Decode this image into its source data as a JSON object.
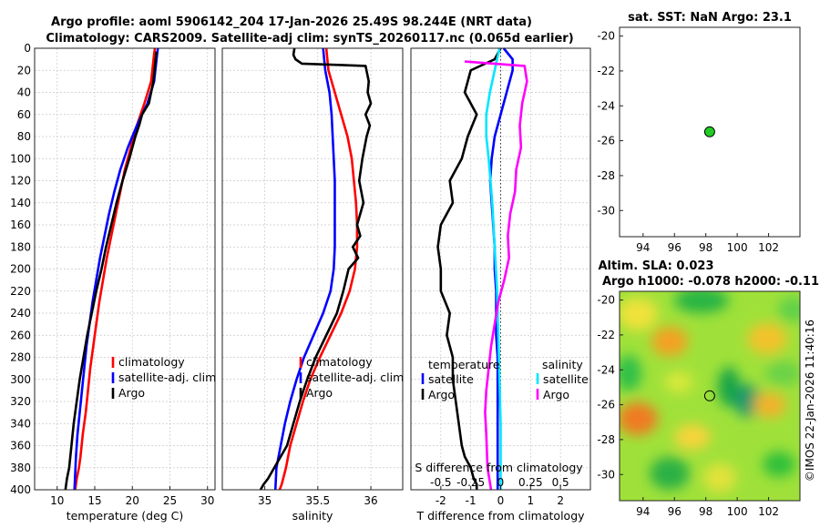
{
  "title_line1": "Argo profile: aoml 5906142_204 17-Jan-2026 25.49S 98.244E (NRT data)",
  "title_line2": "Climatology: CARS2009. Satellite-adj clim: synTS_20260117.nc (0.065d earlier)",
  "sst_title": "sat. SST: NaN Argo: 23.1",
  "sla_title1": "Altim. SLA: 0.023",
  "sla_title2": "Argo h1000: -0.078 h2000: -0.11",
  "watermark": "©IMOS 22-Jan-2026 11:40:16",
  "colors": {
    "red": "#ff0000",
    "blue": "#0000ff",
    "black": "#000000",
    "cyan": "#00e6ff",
    "magenta": "#ff00ff",
    "marker": "#22cc22"
  },
  "chart_data": [
    {
      "type": "line",
      "name": "temperature",
      "xlabel": "temperature (deg C)",
      "ylabel": "",
      "xlim": [
        7,
        31
      ],
      "ylim": [
        400,
        0
      ],
      "xticks": [
        10,
        15,
        20,
        25,
        30
      ],
      "yticks": [
        0,
        20,
        40,
        60,
        80,
        100,
        120,
        140,
        160,
        180,
        200,
        220,
        240,
        260,
        280,
        300,
        320,
        340,
        360,
        380,
        400
      ],
      "legend": [
        "climatology",
        "satellite-adj. clim",
        "Argo"
      ],
      "series": [
        {
          "name": "climatology",
          "color": "red",
          "x": [
            23.0,
            22.9,
            22.5,
            21.6,
            20.6,
            19.8,
            19.0,
            18.4,
            17.8,
            17.2,
            16.6,
            16.1,
            15.6,
            15.2,
            14.8,
            14.4,
            14.1,
            13.8,
            13.4,
            13.1,
            12.9,
            12.6,
            12.4
          ],
          "y": [
            0,
            5,
            30,
            50,
            70,
            90,
            110,
            130,
            150,
            170,
            190,
            210,
            230,
            250,
            270,
            290,
            310,
            330,
            350,
            370,
            380,
            390,
            400
          ]
        },
        {
          "name": "satellite-adj. clim",
          "color": "blue",
          "x": [
            23.4,
            23.3,
            22.9,
            22.0,
            20.6,
            19.4,
            18.4,
            17.6,
            16.9,
            16.3,
            15.7,
            15.2,
            14.7,
            14.3,
            13.9,
            13.6,
            13.3,
            13.0,
            12.7,
            12.5,
            12.3
          ],
          "y": [
            0,
            5,
            30,
            50,
            70,
            90,
            110,
            130,
            150,
            170,
            190,
            210,
            230,
            250,
            270,
            290,
            310,
            330,
            350,
            370,
            400
          ]
        },
        {
          "name": "Argo",
          "color": "black",
          "x": [
            23.2,
            23.1,
            22.8,
            22.2,
            21.3,
            20.9,
            20.4,
            19.6,
            18.7,
            17.9,
            17.2,
            16.5,
            15.9,
            15.2,
            14.6,
            14.0,
            13.5,
            13.0,
            12.6,
            12.2,
            11.9,
            11.6,
            11.3,
            11.1
          ],
          "y": [
            3,
            10,
            30,
            50,
            60,
            70,
            80,
            100,
            120,
            140,
            160,
            180,
            200,
            220,
            240,
            260,
            280,
            300,
            320,
            340,
            360,
            380,
            390,
            400
          ]
        }
      ]
    },
    {
      "type": "line",
      "name": "salinity",
      "xlabel": "salinity",
      "ylabel": "",
      "xlim": [
        34.6,
        36.3
      ],
      "ylim": [
        400,
        0
      ],
      "xticks": [
        35,
        35.5,
        36
      ],
      "yticks": [
        0,
        20,
        40,
        60,
        80,
        100,
        120,
        140,
        160,
        180,
        200,
        220,
        240,
        260,
        280,
        300,
        320,
        340,
        360,
        380,
        400
      ],
      "legend": [
        "climatology",
        "satellite-adj. clim",
        "Argo"
      ],
      "series": [
        {
          "name": "climatology",
          "color": "red",
          "x": [
            35.58,
            35.6,
            35.66,
            35.72,
            35.78,
            35.82,
            35.84,
            35.86,
            35.87,
            35.87,
            35.85,
            35.8,
            35.72,
            35.62,
            35.52,
            35.43,
            35.36,
            35.3,
            35.24,
            35.2,
            35.16,
            35.14
          ],
          "y": [
            0,
            20,
            40,
            60,
            80,
            100,
            120,
            140,
            160,
            180,
            200,
            220,
            240,
            260,
            280,
            300,
            320,
            340,
            360,
            380,
            395,
            400
          ]
        },
        {
          "name": "satellite-adj. clim",
          "color": "blue",
          "x": [
            35.55,
            35.57,
            35.61,
            35.63,
            35.64,
            35.65,
            35.66,
            35.66,
            35.66,
            35.66,
            35.65,
            35.62,
            35.55,
            35.46,
            35.37,
            35.3,
            35.24,
            35.19,
            35.15,
            35.11,
            35.1
          ],
          "y": [
            0,
            20,
            40,
            60,
            80,
            100,
            120,
            140,
            160,
            180,
            200,
            220,
            240,
            260,
            280,
            300,
            320,
            340,
            360,
            380,
            400
          ]
        },
        {
          "name": "Argo",
          "color": "black",
          "x": [
            35.28,
            35.27,
            35.29,
            35.35,
            35.95,
            35.98,
            35.97,
            36.0,
            35.95,
            35.99,
            35.96,
            35.92,
            35.89,
            35.93,
            35.87,
            35.9,
            35.83,
            35.88,
            35.79,
            35.74,
            35.68,
            35.58,
            35.48,
            35.4,
            35.33,
            35.27,
            35.21,
            35.15,
            35.09,
            35.03,
            34.99,
            34.96
          ],
          "y": [
            0,
            6,
            10,
            14,
            16,
            30,
            40,
            50,
            60,
            70,
            80,
            100,
            120,
            140,
            160,
            170,
            180,
            190,
            200,
            220,
            240,
            260,
            280,
            300,
            320,
            340,
            360,
            370,
            380,
            390,
            395,
            400
          ]
        }
      ]
    },
    {
      "type": "line",
      "name": "difference from climatology",
      "xlabel": "T difference from climatology",
      "xlabel_top": "S difference from climatology",
      "xlim": [
        -3,
        3
      ],
      "ylim": [
        400,
        0
      ],
      "xticks": [
        -2,
        -1,
        0,
        1,
        2
      ],
      "xticks_top": [
        -0.5,
        -0.25,
        0,
        0.25,
        0.5
      ],
      "legend_left_title": "temperature",
      "legend_right_title": "salinity",
      "legend_left": [
        "satellite",
        "Argo"
      ],
      "legend_right": [
        "satellite",
        "Argo"
      ],
      "series": [
        {
          "name": "T satellite",
          "color": "blue",
          "x": [
            0.1,
            0.4,
            0.4,
            0.2,
            0,
            -0.2,
            -0.3,
            -0.35,
            -0.3,
            -0.25,
            -0.2,
            -0.2,
            -0.15,
            -0.15,
            -0.15,
            -0.1,
            -0.1,
            -0.1,
            -0.1,
            -0.1,
            -0.1
          ],
          "y": [
            0,
            10,
            20,
            40,
            60,
            80,
            100,
            120,
            140,
            160,
            180,
            200,
            220,
            240,
            260,
            280,
            300,
            320,
            340,
            360,
            400
          ]
        },
        {
          "name": "T Argo",
          "color": "black",
          "x": [
            0,
            -0.2,
            -1.0,
            -1.2,
            -0.8,
            -1.1,
            -1.3,
            -1.7,
            -1.6,
            -2.0,
            -2.1,
            -2.0,
            -2.0,
            -1.7,
            -1.8,
            -1.6,
            -1.6,
            -1.5,
            -1.4,
            -1.3,
            -1.2,
            -1.0,
            -0.9,
            -0.8,
            -0.8
          ],
          "y": [
            0,
            10,
            20,
            40,
            60,
            80,
            100,
            120,
            140,
            160,
            180,
            200,
            220,
            240,
            260,
            280,
            300,
            320,
            340,
            360,
            370,
            380,
            390,
            395,
            400
          ]
        },
        {
          "name": "S satellite",
          "color": "cyan",
          "x": [
            -0.01,
            -0.03,
            -0.05,
            -0.09,
            -0.12,
            -0.12,
            -0.1,
            -0.07,
            -0.05,
            -0.03,
            -0.02,
            -0.01,
            0.0,
            0.0,
            0.0
          ],
          "y": [
            0,
            10,
            20,
            40,
            60,
            80,
            100,
            140,
            180,
            220,
            260,
            300,
            340,
            380,
            400
          ]
        },
        {
          "name": "S Argo",
          "color": "magenta",
          "x": [
            -0.3,
            0.2,
            0.22,
            0.18,
            0.16,
            0.17,
            0.13,
            0.12,
            0.08,
            0.06,
            0.07,
            0.03,
            -0.02,
            -0.05,
            -0.08,
            -0.1,
            -0.12,
            -0.13,
            -0.12,
            -0.11,
            -0.08
          ],
          "y": [
            12,
            16,
            30,
            50,
            70,
            90,
            110,
            130,
            150,
            170,
            190,
            210,
            230,
            250,
            270,
            290,
            310,
            330,
            350,
            380,
            400
          ]
        }
      ]
    },
    {
      "type": "scatter",
      "name": "sat. SST",
      "xlim": [
        92.5,
        104
      ],
      "ylim": [
        -31.5,
        -19.5
      ],
      "xticks": [
        94,
        96,
        98,
        100,
        102
      ],
      "yticks": [
        -20,
        -22,
        -24,
        -26,
        -28,
        -30
      ],
      "points": [
        {
          "x": 98.244,
          "y": -25.49,
          "value": 23.1
        }
      ]
    },
    {
      "type": "heatmap",
      "name": "Altim. SLA",
      "xlim": [
        92.5,
        104
      ],
      "ylim": [
        -31.5,
        -19.5
      ],
      "xticks": [
        94,
        96,
        98,
        100,
        102
      ],
      "yticks": [
        -20,
        -22,
        -24,
        -26,
        -28,
        -30
      ],
      "points": [
        {
          "x": 98.244,
          "y": -25.49
        }
      ]
    }
  ]
}
